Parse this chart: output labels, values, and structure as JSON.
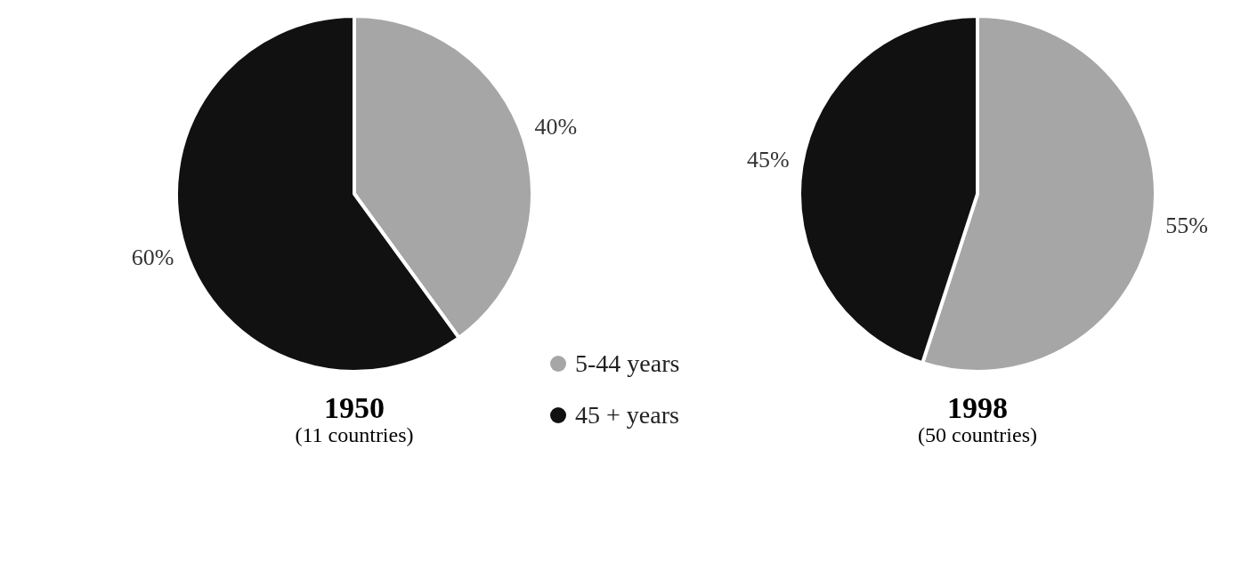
{
  "chart_data": [
    {
      "type": "pie",
      "title": "1950",
      "subtitle": "(11 countries)",
      "categories": [
        "5-44 years",
        "45 + years"
      ],
      "values": [
        40,
        60
      ],
      "value_labels": [
        "40%",
        "60%"
      ],
      "colors": [
        "#a6a6a6",
        "#111111"
      ],
      "legend": "bottom right"
    },
    {
      "type": "pie",
      "title": "1998",
      "subtitle": "(50 countries)",
      "categories": [
        null,
        null
      ],
      "values": [
        55,
        45
      ],
      "value_labels": [
        "55%",
        "45%"
      ],
      "colors": [
        "#a6a6a6",
        "#111111"
      ]
    }
  ]
}
